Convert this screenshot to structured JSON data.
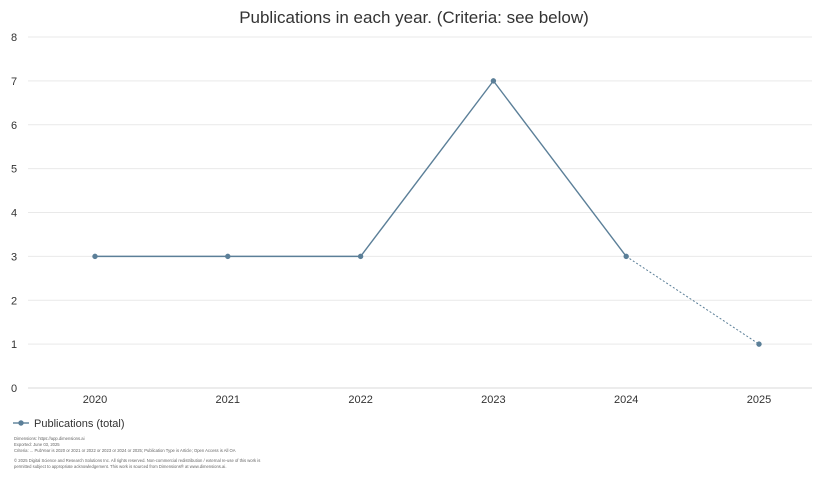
{
  "chart_data": {
    "type": "line",
    "title": "Publications in each year. (Criteria: see below)",
    "categories": [
      "2020",
      "2021",
      "2022",
      "2023",
      "2024",
      "2025"
    ],
    "series": [
      {
        "name": "Publications (total)",
        "values": [
          3,
          3,
          3,
          7,
          3,
          1
        ],
        "color": "#5b7f98",
        "dashed_last_segment": true
      }
    ],
    "ylim": [
      0,
      8
    ],
    "yticks": [
      0,
      1,
      2,
      3,
      4,
      5,
      6,
      7,
      8
    ],
    "grid": true,
    "legend_position": "bottom-left"
  },
  "footer": {
    "lines": [
      "Dimensions: https://app.dimensions.ai",
      "Exported: June 03, 2025",
      "Criteria: ... PubYear is 2020 or 2021 or 2022 or 2023 or 2024 or 2025; Publication Type is Article; Open Access is All OA",
      "© 2025 Digital Science and Research Solutions Inc. All rights reserved. Non-commercial redistribution / external re-use of this work is",
      "permitted subject to appropriate acknowledgement. This work is sourced from Dimensions® at www.dimensions.ai."
    ]
  }
}
